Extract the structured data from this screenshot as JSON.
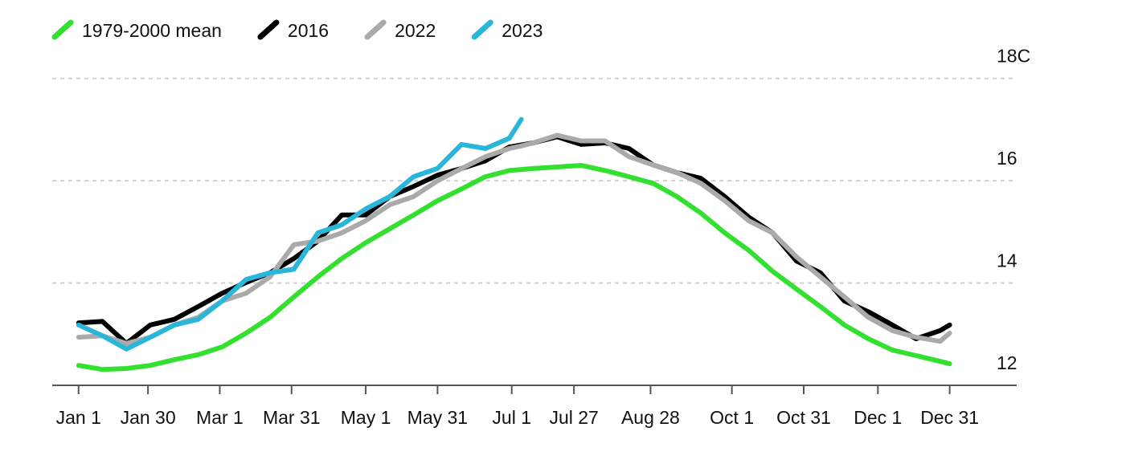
{
  "chart_data": {
    "type": "line",
    "legend": "top-left",
    "grid": true,
    "x": [
      1,
      11,
      21,
      31,
      41,
      51,
      61,
      71,
      81,
      91,
      101,
      111,
      121,
      131,
      141,
      151,
      161,
      171,
      181,
      186,
      191,
      201,
      211,
      221,
      231,
      241,
      251,
      261,
      271,
      281,
      291,
      301,
      311,
      321,
      331,
      341,
      351,
      361,
      365
    ],
    "xlim": [
      -10,
      393
    ],
    "xticks": [
      {
        "value": 1,
        "label": "Jan 1"
      },
      {
        "value": 30,
        "label": "Jan 30"
      },
      {
        "value": 60,
        "label": "Mar 1"
      },
      {
        "value": 90,
        "label": "Mar 31"
      },
      {
        "value": 121,
        "label": "May 1"
      },
      {
        "value": 151,
        "label": "May 31"
      },
      {
        "value": 182,
        "label": "Jul 1"
      },
      {
        "value": 208,
        "label": "Jul 27"
      },
      {
        "value": 240,
        "label": "Aug 28"
      },
      {
        "value": 274,
        "label": "Oct 1"
      },
      {
        "value": 304,
        "label": "Oct 31"
      },
      {
        "value": 335,
        "label": "Dec 1"
      },
      {
        "value": 365,
        "label": "Dec 31"
      }
    ],
    "ylim": [
      12,
      18.2
    ],
    "yticks": [
      12,
      14,
      16,
      {
        "value": 18,
        "label": "18C"
      }
    ],
    "series": [
      {
        "name": "1979-2000 mean",
        "color": "#33e02f",
        "values": [
          12.39,
          12.31,
          12.33,
          12.39,
          12.5,
          12.6,
          12.75,
          13.02,
          13.33,
          13.73,
          14.12,
          14.48,
          14.79,
          15.06,
          15.33,
          15.61,
          15.84,
          16.08,
          16.2,
          16.22,
          16.24,
          16.27,
          16.3,
          16.2,
          16.08,
          15.95,
          15.69,
          15.37,
          14.98,
          14.64,
          14.23,
          13.88,
          13.54,
          13.18,
          12.91,
          12.69,
          12.58,
          12.47,
          12.42
        ]
      },
      {
        "name": "2016",
        "color": "#000000",
        "values": [
          13.22,
          13.25,
          12.82,
          13.18,
          13.29,
          13.54,
          13.8,
          14.01,
          14.2,
          14.48,
          14.82,
          15.33,
          15.33,
          15.69,
          15.89,
          16.11,
          16.24,
          16.39,
          16.66,
          16.7,
          16.74,
          16.86,
          16.71,
          16.74,
          16.63,
          16.31,
          16.16,
          16.05,
          15.69,
          15.29,
          14.98,
          14.43,
          14.2,
          13.65,
          13.44,
          13.18,
          12.91,
          13.07,
          13.18
        ]
      },
      {
        "name": "2022",
        "color": "#aaaaaa",
        "values": [
          12.94,
          12.97,
          12.82,
          12.94,
          13.18,
          13.33,
          13.65,
          13.8,
          14.12,
          14.75,
          14.82,
          14.98,
          15.22,
          15.53,
          15.69,
          16.0,
          16.24,
          16.47,
          16.63,
          16.68,
          16.74,
          16.89,
          16.78,
          16.78,
          16.47,
          16.31,
          16.16,
          15.95,
          15.61,
          15.22,
          14.98,
          14.51,
          14.12,
          13.73,
          13.33,
          13.07,
          12.94,
          12.86,
          13.02
        ]
      },
      {
        "name": "2023",
        "color": "#29b6d8",
        "values": [
          13.18,
          12.97,
          12.71,
          12.94,
          13.18,
          13.29,
          13.65,
          14.07,
          14.2,
          14.27,
          14.98,
          15.14,
          15.45,
          15.69,
          16.08,
          16.24,
          16.71,
          16.63,
          16.83,
          17.2,
          null,
          null,
          null,
          null,
          null,
          null,
          null,
          null,
          null,
          null,
          null,
          null,
          null,
          null,
          null,
          null,
          null,
          null,
          null
        ]
      }
    ]
  }
}
